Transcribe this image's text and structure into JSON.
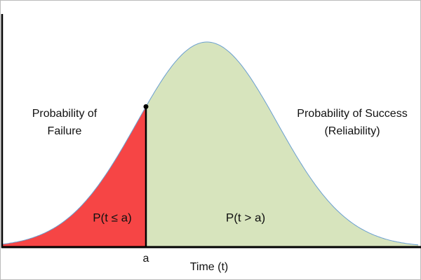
{
  "diagram": {
    "failure_label": [
      "Probability of",
      "Failure"
    ],
    "success_label": [
      "Probability of Success",
      "(Reliability)"
    ],
    "left_region_label": "P(t ≤ a)",
    "right_region_label": "P(t > a)",
    "point_label": "a",
    "x_axis_label": "Time (t)"
  }
}
